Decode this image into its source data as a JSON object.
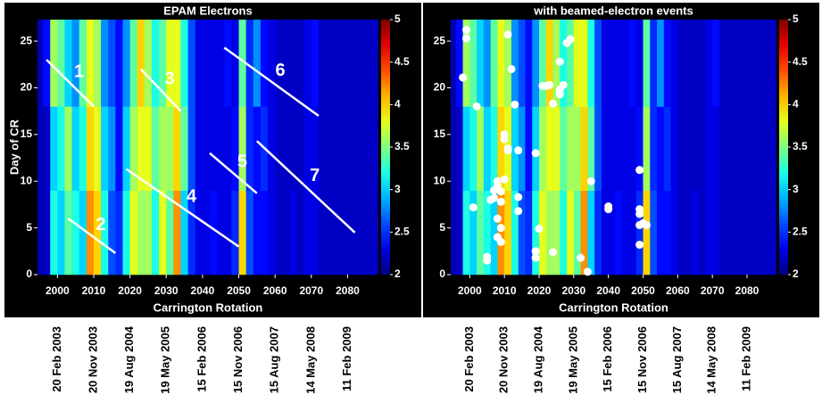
{
  "chart_data": [
    {
      "type": "heatmap",
      "title": "EPAM Electrons",
      "xlabel": "Carrington Rotation",
      "ylabel": "Day of CR",
      "xlim": [
        1994.5,
        2088.5
      ],
      "ylim": [
        0,
        27.3
      ],
      "xticks": [
        2000,
        2010,
        2020,
        2030,
        2040,
        2050,
        2060,
        2070,
        2080
      ],
      "yticks": [
        0,
        5,
        10,
        15,
        20,
        25
      ],
      "date_labels": [
        "20 Feb 2003",
        "20 Nov 2003",
        "19 Aug 2004",
        "19 May 2005",
        "15 Feb 2006",
        "15 Nov 2006",
        "15 Aug 2007",
        "14 May 2008",
        "11 Feb 2009"
      ],
      "xbins": [
        1996,
        1998,
        2000,
        2002,
        2004,
        2006,
        2008,
        2010,
        2012,
        2014,
        2016,
        2018,
        2020,
        2022,
        2024,
        2026,
        2028,
        2030,
        2032,
        2034,
        2036,
        2038,
        2040,
        2042,
        2044,
        2046,
        2048,
        2050,
        2052,
        2054,
        2056,
        2058,
        2060,
        2062,
        2064,
        2066,
        2068,
        2070,
        2072,
        2074,
        2076,
        2078,
        2080,
        2082,
        2084,
        2086,
        2088
      ],
      "ybins": [
        0,
        9,
        18,
        27.3
      ],
      "z": [
        [
          2.2,
          3.2,
          3.0,
          3.4,
          3.2,
          3.0,
          4.2,
          4.0,
          3.2,
          2.6,
          2.5,
          3.2,
          3.8,
          3.6,
          3.6,
          3.2,
          3.8,
          3.4,
          4.2,
          3.0,
          2.5,
          2.3,
          2.3,
          2.4,
          2.3,
          2.3,
          2.5,
          4.0,
          2.6,
          2.4,
          2.4,
          2.3,
          2.2,
          2.2,
          2.3,
          2.2,
          2.3,
          2.3,
          2.2,
          2.2,
          2.2,
          2.2,
          2.2,
          2.2,
          2.2,
          2.2
        ],
        [
          2.2,
          3.0,
          3.2,
          3.6,
          3.0,
          3.2,
          4.0,
          3.8,
          3.0,
          2.8,
          2.4,
          3.0,
          3.6,
          3.8,
          3.8,
          3.4,
          3.6,
          3.6,
          4.0,
          3.4,
          2.6,
          2.3,
          2.3,
          2.3,
          2.3,
          2.3,
          2.4,
          3.6,
          2.5,
          2.4,
          2.5,
          2.3,
          2.2,
          2.2,
          2.2,
          2.2,
          2.3,
          2.3,
          2.2,
          2.2,
          2.2,
          2.2,
          2.2,
          2.2,
          2.2,
          2.2
        ],
        [
          2.4,
          3.6,
          3.4,
          3.0,
          2.8,
          3.4,
          3.8,
          3.6,
          2.8,
          2.6,
          2.4,
          2.8,
          3.4,
          4.0,
          3.6,
          3.2,
          3.4,
          3.8,
          3.8,
          3.2,
          2.6,
          2.3,
          2.3,
          2.3,
          2.3,
          2.4,
          2.3,
          3.4,
          2.5,
          2.8,
          2.4,
          2.3,
          2.2,
          2.2,
          2.2,
          2.2,
          2.3,
          2.4,
          2.2,
          2.2,
          2.2,
          2.2,
          2.2,
          2.2,
          2.2,
          2.2
        ]
      ],
      "colorbar": {
        "lim": [
          2,
          5
        ],
        "ticks": [
          2,
          2.5,
          3,
          3.5,
          4,
          4.5,
          5
        ]
      },
      "annotations": [
        {
          "label": "1",
          "x": [
            1997,
            2010
          ],
          "y": [
            23,
            18
          ]
        },
        {
          "label": "2",
          "x": [
            2003,
            2016
          ],
          "y": [
            6,
            2.3
          ]
        },
        {
          "label": "3",
          "x": [
            2023,
            2034
          ],
          "y": [
            22,
            17.5
          ]
        },
        {
          "label": "4",
          "x": [
            2019,
            2050
          ],
          "y": [
            11.3,
            3
          ]
        },
        {
          "label": "5",
          "x": [
            2042,
            2055
          ],
          "y": [
            13,
            8.7
          ]
        },
        {
          "label": "6",
          "x": [
            2046,
            2072
          ],
          "y": [
            24.3,
            17
          ]
        },
        {
          "label": "7",
          "x": [
            2055,
            2082
          ],
          "y": [
            14.3,
            4.5
          ]
        }
      ]
    },
    {
      "type": "heatmap",
      "title": "with beamed-electron events",
      "xlabel": "Carrington Rotation",
      "xlim": [
        1994.5,
        2088.5
      ],
      "ylim": [
        0,
        27.3
      ],
      "xticks": [
        2000,
        2010,
        2020,
        2030,
        2040,
        2050,
        2060,
        2070,
        2080
      ],
      "yticks": [
        0,
        5,
        10,
        15,
        20,
        25
      ],
      "date_labels": [
        "20 Feb 2003",
        "20 Nov 2003",
        "19 Aug 2004",
        "19 May 2005",
        "15 Feb 2006",
        "15 Nov 2006",
        "15 Aug 2007",
        "14 May 2008",
        "11 Feb 2009"
      ],
      "xbins": [
        1996,
        1998,
        2000,
        2002,
        2004,
        2006,
        2008,
        2010,
        2012,
        2014,
        2016,
        2018,
        2020,
        2022,
        2024,
        2026,
        2028,
        2030,
        2032,
        2034,
        2036,
        2038,
        2040,
        2042,
        2044,
        2046,
        2048,
        2050,
        2052,
        2054,
        2056,
        2058,
        2060,
        2062,
        2064,
        2066,
        2068,
        2070,
        2072,
        2074,
        2076,
        2078,
        2080,
        2082,
        2084,
        2086,
        2088
      ],
      "ybins": [
        0,
        9,
        18,
        27.3
      ],
      "z": [
        [
          2.2,
          3.2,
          3.0,
          3.4,
          3.2,
          3.0,
          4.2,
          4.0,
          3.2,
          2.6,
          2.5,
          3.2,
          3.8,
          3.6,
          3.6,
          3.2,
          3.8,
          3.4,
          4.2,
          3.0,
          2.5,
          2.3,
          2.3,
          2.4,
          2.3,
          2.3,
          2.5,
          4.0,
          2.6,
          2.4,
          2.4,
          2.3,
          2.2,
          2.2,
          2.3,
          2.2,
          2.3,
          2.3,
          2.2,
          2.2,
          2.2,
          2.2,
          2.2,
          2.2,
          2.2,
          2.2
        ],
        [
          2.2,
          3.0,
          3.2,
          3.6,
          3.0,
          3.2,
          4.0,
          3.8,
          3.0,
          2.8,
          2.4,
          3.0,
          3.6,
          3.8,
          3.8,
          3.4,
          3.6,
          3.6,
          4.0,
          3.4,
          2.6,
          2.3,
          2.3,
          2.3,
          2.3,
          2.3,
          2.4,
          3.6,
          2.5,
          2.4,
          2.5,
          2.3,
          2.2,
          2.2,
          2.2,
          2.2,
          2.3,
          2.3,
          2.2,
          2.2,
          2.2,
          2.2,
          2.2,
          2.2,
          2.2,
          2.2
        ],
        [
          2.4,
          3.6,
          3.4,
          3.0,
          2.8,
          3.4,
          3.8,
          3.6,
          2.8,
          2.6,
          2.4,
          2.8,
          3.4,
          4.0,
          3.6,
          3.2,
          3.4,
          3.8,
          3.8,
          3.2,
          2.6,
          2.3,
          2.3,
          2.3,
          2.3,
          2.4,
          2.3,
          3.4,
          2.5,
          2.8,
          2.4,
          2.3,
          2.2,
          2.2,
          2.2,
          2.2,
          2.3,
          2.4,
          2.2,
          2.2,
          2.2,
          2.2,
          2.2,
          2.2,
          2.2,
          2.2
        ]
      ],
      "colorbar": {
        "lim": [
          2,
          5
        ],
        "ticks": [
          2,
          2.5,
          3,
          3.5,
          4,
          4.5,
          5
        ]
      },
      "points": {
        "color": "#ffffff",
        "x": [
          1998,
          1999,
          1999,
          2001,
          2002,
          2005,
          2005,
          2006,
          2007,
          2007,
          2008,
          2008,
          2008,
          2008,
          2009,
          2009,
          2009,
          2009,
          2010,
          2010,
          2010,
          2011,
          2011,
          2011,
          2012,
          2013,
          2014,
          2014,
          2014,
          2019,
          2019,
          2019,
          2020,
          2021,
          2022,
          2023,
          2024,
          2024,
          2026,
          2026,
          2026,
          2027,
          2028,
          2029,
          2032,
          2034,
          2035,
          2040,
          2040,
          2049,
          2049,
          2049,
          2049,
          2049,
          2050,
          2051
        ],
        "y": [
          21.1,
          26.2,
          25.3,
          7.2,
          18,
          1.5,
          1.9,
          8,
          9,
          8.2,
          10,
          9.5,
          6,
          4,
          3.5,
          5,
          7.8,
          8.9,
          10.2,
          15,
          14.5,
          13.5,
          13.3,
          25.7,
          22,
          18.2,
          13.3,
          6.8,
          8.3,
          13,
          2.5,
          1.8,
          4.9,
          20.2,
          20.2,
          20.3,
          18.3,
          2.4,
          19.3,
          19.8,
          22.8,
          20.3,
          24.8,
          25.2,
          1.8,
          0.3,
          10,
          7.3,
          7,
          11.2,
          7,
          6.5,
          5.3,
          3.2,
          5.5,
          5.3
        ]
      }
    }
  ]
}
